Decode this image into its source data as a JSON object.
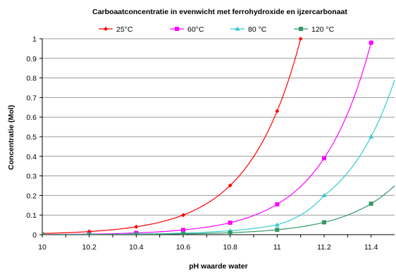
{
  "chart_data": {
    "type": "line",
    "title": "Carboaatconcentratie in evenwicht met ferrohydroxide en ijzercarbonaat",
    "xlabel": "pH waarde water",
    "ylabel": "Concentratie (Mol)",
    "xlim": [
      10,
      11.5
    ],
    "ylim": [
      0,
      1
    ],
    "x_ticks": [
      "10",
      "10.2",
      "10.4",
      "10.6",
      "10.8",
      "11",
      "11.2",
      "11.4"
    ],
    "y_ticks": [
      "0",
      "0.1",
      "0.2",
      "0.3",
      "0.4",
      "0.5",
      "0.6",
      "0.7",
      "0.8",
      "0.9",
      "1"
    ],
    "grid": "horizontal",
    "legend_position": "top",
    "series": [
      {
        "name": "25°C",
        "color": "#ff0000",
        "marker": "diamond",
        "x": [
          10,
          10.2,
          10.4,
          10.6,
          10.8,
          11,
          11.1
        ],
        "y": [
          0.006,
          0.016,
          0.04,
          0.1,
          0.251,
          0.631,
          1.0
        ]
      },
      {
        "name": "60°C",
        "color": "#ff00ff",
        "marker": "square",
        "x": [
          10,
          10.2,
          10.4,
          10.6,
          10.8,
          11,
          11.2,
          11.4
        ],
        "y": [
          0.001,
          0.003,
          0.009,
          0.024,
          0.061,
          0.155,
          0.39,
          0.98
        ]
      },
      {
        "name": "80 °C",
        "color": "#33cccc",
        "marker": "triangle",
        "x": [
          10,
          10.2,
          10.4,
          10.6,
          10.8,
          11,
          11.2,
          11.4,
          11.5
        ],
        "y": [
          0.0005,
          0.0013,
          0.0033,
          0.008,
          0.02,
          0.05,
          0.2,
          0.5,
          0.79
        ]
      },
      {
        "name": "120 °C",
        "color": "#339966",
        "marker": "square",
        "x": [
          10,
          10.2,
          10.4,
          10.6,
          10.8,
          11,
          11.2,
          11.4,
          11.5
        ],
        "y": [
          0.0002,
          0.0006,
          0.0016,
          0.004,
          0.01,
          0.025,
          0.063,
          0.158,
          0.25
        ]
      }
    ]
  }
}
